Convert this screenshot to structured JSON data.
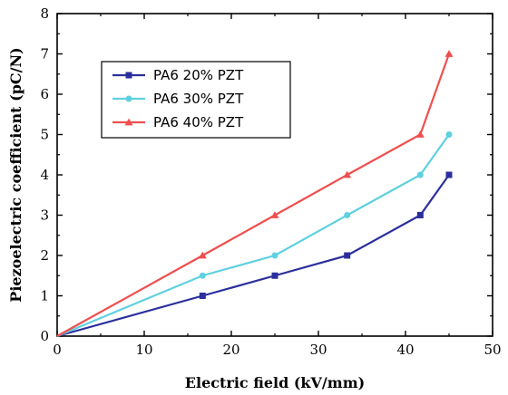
{
  "chart_data": {
    "type": "line",
    "xlabel": "Electric field (kV/mm)",
    "ylabel": "Piezoelectric coefficient (pC/N)",
    "xlim": [
      0,
      50
    ],
    "ylim": [
      0,
      8
    ],
    "xticks": [
      0,
      10,
      20,
      30,
      40,
      50
    ],
    "yticks": [
      0,
      1,
      2,
      3,
      4,
      5,
      6,
      7,
      8
    ],
    "grid": false,
    "legend_position": "top-left",
    "series": [
      {
        "name": "PA6 20% PZT",
        "color": "#2b2f9c",
        "marker": "square",
        "x": [
          0,
          16.7,
          25,
          33.3,
          41.7,
          45
        ],
        "y": [
          0,
          1.0,
          1.5,
          2.0,
          3.0,
          4.0
        ]
      },
      {
        "name": "PA6 30% PZT",
        "color": "#5fd0df",
        "marker": "circle",
        "x": [
          0,
          16.7,
          25,
          33.3,
          41.7,
          45
        ],
        "y": [
          0,
          1.5,
          2.0,
          3.0,
          4.0,
          5.0
        ]
      },
      {
        "name": "PA6 40% PZT",
        "color": "#ee4f4f",
        "marker": "triangle",
        "x": [
          0,
          16.7,
          25,
          33.3,
          41.7,
          45
        ],
        "y": [
          0,
          2.0,
          3.0,
          4.0,
          5.0,
          7.0
        ]
      }
    ]
  }
}
